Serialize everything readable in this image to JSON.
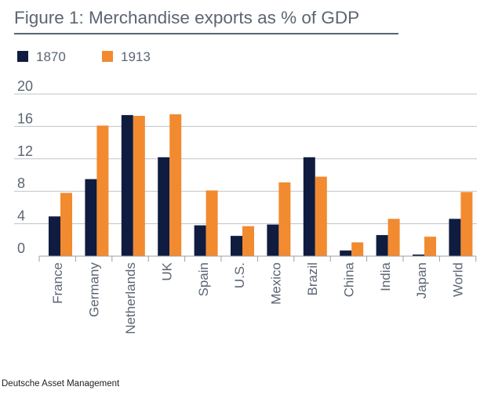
{
  "chart_data": {
    "type": "bar",
    "title": "Figure 1: Merchandise exports as % of GDP",
    "categories": [
      "France",
      "Germany",
      "Netherlands",
      "UK",
      "Spain",
      "U.S.",
      "Mexico",
      "Brazil",
      "China",
      "India",
      "Japan",
      "World"
    ],
    "series": [
      {
        "name": "1870",
        "color": "#0f1c3f",
        "values": [
          4.9,
          9.5,
          17.4,
          12.2,
          3.8,
          2.5,
          3.9,
          12.2,
          0.7,
          2.6,
          0.2,
          4.6
        ]
      },
      {
        "name": "1913",
        "color": "#f28a30",
        "values": [
          7.8,
          16.1,
          17.3,
          17.5,
          8.1,
          3.7,
          9.1,
          9.8,
          1.7,
          4.6,
          2.4,
          7.9
        ]
      }
    ],
    "yticks": [
      0,
      4,
      8,
      12,
      16,
      20
    ],
    "ylim": [
      0,
      20
    ],
    "xlabel": "",
    "ylabel": "",
    "legend_position": "top-left",
    "grid": true
  },
  "source": "Deutsche Asset Management"
}
